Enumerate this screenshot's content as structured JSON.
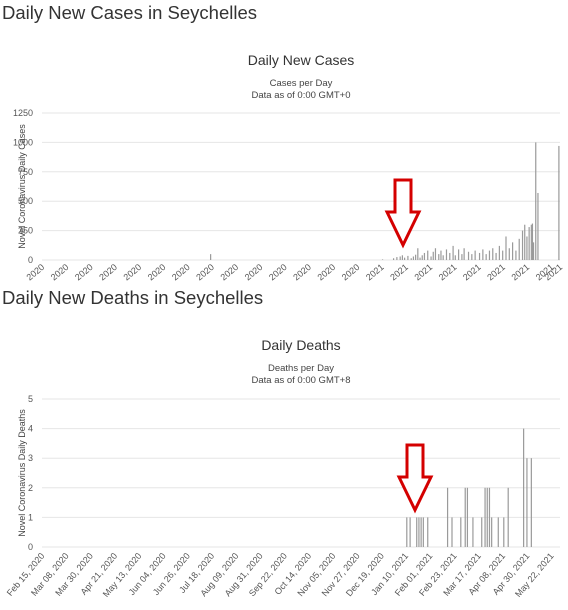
{
  "sections": [
    {
      "heading": "Daily New Cases in Seychelles"
    },
    {
      "heading": "Daily New Deaths in Seychelles"
    }
  ],
  "chart_data": [
    {
      "type": "bar",
      "title": "Daily New Cases",
      "subtitle_lines": [
        "Cases per Day",
        "Data as of 0:00 GMT+0"
      ],
      "ylabel": "Novel Coronavirus Daily Cases",
      "xlabel": "",
      "ylim": [
        0,
        1250
      ],
      "yticks": [
        0,
        250,
        500,
        750,
        1000,
        1250
      ],
      "grid": true,
      "bar_color": "#9a9a9a",
      "x_start": "2020-02-15",
      "x_end": "2021-05-30",
      "x_tick_labels": [
        "2020",
        "2020",
        "2020",
        "2020",
        "2020",
        "2020",
        "2020",
        "2020",
        "2020",
        "2020",
        "2020",
        "2020",
        "2020",
        "2020",
        "2021",
        "2021",
        "2021",
        "2021",
        "2021",
        "2021",
        "2021",
        "2021",
        "2021"
      ],
      "x_tick_label_dates": [
        "2020-02-15",
        "2020-03-08",
        "2020-03-30",
        "2020-04-21",
        "2020-05-13",
        "2020-06-04",
        "2020-06-26",
        "2020-07-18",
        "2020-08-09",
        "2020-08-31",
        "2020-09-22",
        "2020-10-14",
        "2020-11-05",
        "2020-11-27",
        "2020-12-19",
        "2021-01-10",
        "2021-02-01",
        "2021-02-23",
        "2021-03-17",
        "2021-04-08",
        "2021-04-30",
        "2021-05-22",
        "2021-05-30"
      ],
      "points": [
        {
          "date": "2020-07-17",
          "value": 50
        },
        {
          "date": "2020-12-20",
          "value": 5
        },
        {
          "date": "2020-12-30",
          "value": 15
        },
        {
          "date": "2021-01-02",
          "value": 25
        },
        {
          "date": "2021-01-05",
          "value": 30
        },
        {
          "date": "2021-01-07",
          "value": 40
        },
        {
          "date": "2021-01-09",
          "value": 20
        },
        {
          "date": "2021-01-12",
          "value": 35
        },
        {
          "date": "2021-01-15",
          "value": 15
        },
        {
          "date": "2021-01-17",
          "value": 30
        },
        {
          "date": "2021-01-19",
          "value": 45
        },
        {
          "date": "2021-01-21",
          "value": 100
        },
        {
          "date": "2021-01-23",
          "value": 20
        },
        {
          "date": "2021-01-25",
          "value": 40
        },
        {
          "date": "2021-01-27",
          "value": 60
        },
        {
          "date": "2021-01-30",
          "value": 80
        },
        {
          "date": "2021-02-02",
          "value": 30
        },
        {
          "date": "2021-02-04",
          "value": 70
        },
        {
          "date": "2021-02-06",
          "value": 100
        },
        {
          "date": "2021-02-09",
          "value": 50
        },
        {
          "date": "2021-02-11",
          "value": 80
        },
        {
          "date": "2021-02-13",
          "value": 40
        },
        {
          "date": "2021-02-16",
          "value": 90
        },
        {
          "date": "2021-02-19",
          "value": 60
        },
        {
          "date": "2021-02-22",
          "value": 120
        },
        {
          "date": "2021-02-24",
          "value": 40
        },
        {
          "date": "2021-02-27",
          "value": 90
        },
        {
          "date": "2021-03-02",
          "value": 50
        },
        {
          "date": "2021-03-04",
          "value": 100
        },
        {
          "date": "2021-03-08",
          "value": 70
        },
        {
          "date": "2021-03-11",
          "value": 50
        },
        {
          "date": "2021-03-14",
          "value": 80
        },
        {
          "date": "2021-03-18",
          "value": 60
        },
        {
          "date": "2021-03-21",
          "value": 90
        },
        {
          "date": "2021-03-24",
          "value": 50
        },
        {
          "date": "2021-03-27",
          "value": 80
        },
        {
          "date": "2021-03-30",
          "value": 100
        },
        {
          "date": "2021-04-02",
          "value": 60
        },
        {
          "date": "2021-04-05",
          "value": 120
        },
        {
          "date": "2021-04-08",
          "value": 80
        },
        {
          "date": "2021-04-11",
          "value": 200
        },
        {
          "date": "2021-04-14",
          "value": 100
        },
        {
          "date": "2021-04-17",
          "value": 150
        },
        {
          "date": "2021-04-20",
          "value": 80
        },
        {
          "date": "2021-04-23",
          "value": 180
        },
        {
          "date": "2021-04-26",
          "value": 250
        },
        {
          "date": "2021-04-28",
          "value": 300
        },
        {
          "date": "2021-04-30",
          "value": 200
        },
        {
          "date": "2021-05-02",
          "value": 280
        },
        {
          "date": "2021-05-04",
          "value": 300
        },
        {
          "date": "2021-05-05",
          "value": 310
        },
        {
          "date": "2021-05-06",
          "value": 150
        },
        {
          "date": "2021-05-08",
          "value": 1000
        },
        {
          "date": "2021-05-10",
          "value": 570
        },
        {
          "date": "2021-05-29",
          "value": 970
        }
      ]
    },
    {
      "type": "bar",
      "title": "Daily Deaths",
      "subtitle_lines": [
        "Deaths per Day",
        "Data as of 0:00 GMT+8"
      ],
      "ylabel": "Novel Coronavirus Daily Deaths",
      "xlabel": "",
      "ylim": [
        0,
        5
      ],
      "yticks": [
        0,
        1,
        2,
        3,
        4,
        5
      ],
      "grid": true,
      "bar_color": "#9a9a9a",
      "x_start": "2020-02-15",
      "x_end": "2021-05-30",
      "x_tick_labels": [
        "Feb 15, 2020",
        "Mar 08, 2020",
        "Mar 30, 2020",
        "Apr 21, 2020",
        "May 13, 2020",
        "Jun 04, 2020",
        "Jun 26, 2020",
        "Jul 18, 2020",
        "Aug 09, 2020",
        "Aug 31, 2020",
        "Sep 22, 2020",
        "Oct 14, 2020",
        "Nov 05, 2020",
        "Nov 27, 2020",
        "Dec 19, 2020",
        "Jan 10, 2021",
        "Feb 01, 2021",
        "Feb 23, 2021",
        "Mar 17, 2021",
        "Apr 08, 2021",
        "Apr 30, 2021",
        "May 22, 2021"
      ],
      "x_tick_label_dates": [
        "2020-02-15",
        "2020-03-08",
        "2020-03-30",
        "2020-04-21",
        "2020-05-13",
        "2020-06-04",
        "2020-06-26",
        "2020-07-18",
        "2020-08-09",
        "2020-08-31",
        "2020-09-22",
        "2020-10-14",
        "2020-11-05",
        "2020-11-27",
        "2020-12-19",
        "2021-01-10",
        "2021-02-01",
        "2021-02-23",
        "2021-03-17",
        "2021-04-08",
        "2021-04-30",
        "2021-05-22"
      ],
      "points": [
        {
          "date": "2021-01-11",
          "value": 1
        },
        {
          "date": "2021-01-14",
          "value": 1
        },
        {
          "date": "2021-01-20",
          "value": 1
        },
        {
          "date": "2021-01-22",
          "value": 1
        },
        {
          "date": "2021-01-24",
          "value": 1
        },
        {
          "date": "2021-01-26",
          "value": 1
        },
        {
          "date": "2021-01-30",
          "value": 1
        },
        {
          "date": "2021-02-17",
          "value": 2
        },
        {
          "date": "2021-02-21",
          "value": 1
        },
        {
          "date": "2021-03-01",
          "value": 1
        },
        {
          "date": "2021-03-05",
          "value": 2
        },
        {
          "date": "2021-03-07",
          "value": 2
        },
        {
          "date": "2021-03-12",
          "value": 1
        },
        {
          "date": "2021-03-20",
          "value": 1
        },
        {
          "date": "2021-03-23",
          "value": 2
        },
        {
          "date": "2021-03-25",
          "value": 2
        },
        {
          "date": "2021-03-27",
          "value": 2
        },
        {
          "date": "2021-03-29",
          "value": 1
        },
        {
          "date": "2021-04-04",
          "value": 1
        },
        {
          "date": "2021-04-09",
          "value": 1
        },
        {
          "date": "2021-04-13",
          "value": 2
        },
        {
          "date": "2021-04-27",
          "value": 4
        },
        {
          "date": "2021-04-30",
          "value": 3
        },
        {
          "date": "2021-05-04",
          "value": 3
        }
      ]
    }
  ]
}
